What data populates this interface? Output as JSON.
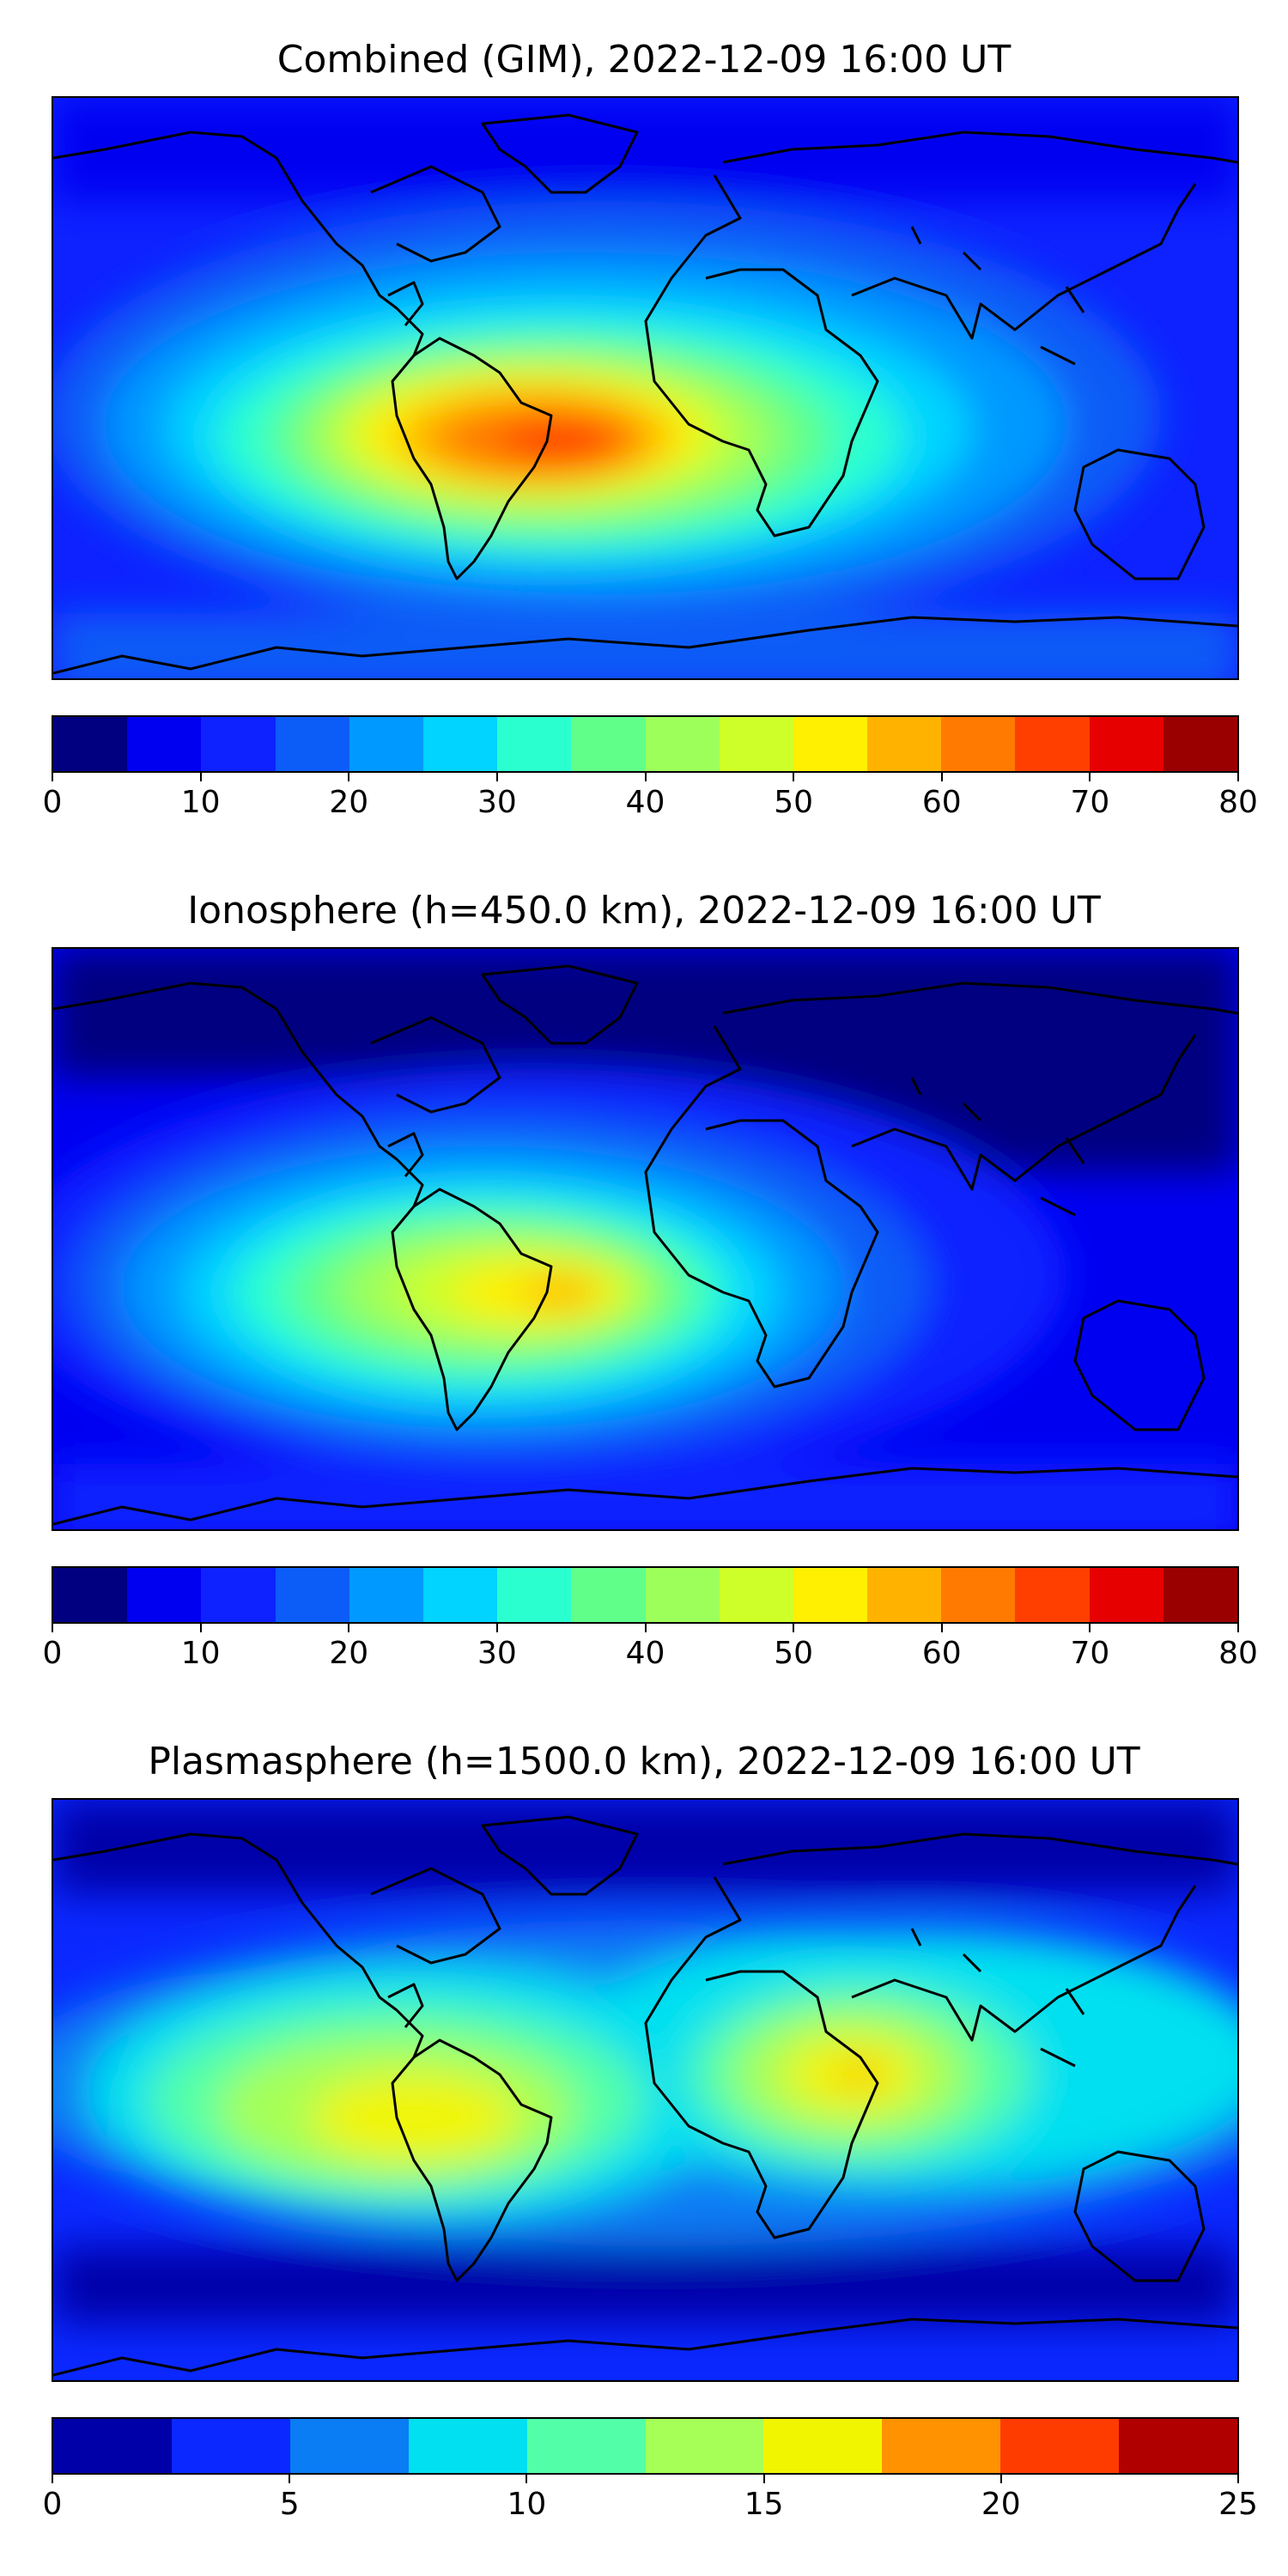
{
  "panels": [
    {
      "title": "Combined (GIM), 2022-12-09 16:00 UT",
      "colorbar": {
        "min": 0,
        "max": 80,
        "tick_labels": [
          "0",
          "10",
          "20",
          "30",
          "40",
          "50",
          "60",
          "70",
          "80"
        ],
        "colors": [
          "#000080",
          "#0000f1",
          "#0d22ff",
          "#0c5cf7",
          "#0099ff",
          "#00d4ff",
          "#2affd0",
          "#60ff8a",
          "#9dff5a",
          "#ceff29",
          "#ffef00",
          "#ffb300",
          "#ff7a00",
          "#ff3f00",
          "#e70000",
          "#9a0000"
        ]
      },
      "map_background": "#1530e8"
    },
    {
      "title": "Ionosphere  (h=450.0 km), 2022-12-09 16:00 UT",
      "colorbar": {
        "min": 0,
        "max": 80,
        "tick_labels": [
          "0",
          "10",
          "20",
          "30",
          "40",
          "50",
          "60",
          "70",
          "80"
        ],
        "colors": [
          "#000080",
          "#0000f1",
          "#0d22ff",
          "#0c5cf7",
          "#0099ff",
          "#00d4ff",
          "#2affd0",
          "#60ff8a",
          "#9dff5a",
          "#ceff29",
          "#ffef00",
          "#ffb300",
          "#ff7a00",
          "#ff3f00",
          "#e70000",
          "#9a0000"
        ]
      },
      "map_background": "#0d1fb8"
    },
    {
      "title": "Plasmasphere (h=1500.0 km), 2022-12-09 16:00 UT",
      "colorbar": {
        "min": 0,
        "max": 25,
        "tick_labels": [
          "0",
          "5",
          "10",
          "15",
          "20",
          "25"
        ],
        "colors": [
          "#0000a8",
          "#0a28ff",
          "#0a7cf4",
          "#00e0f0",
          "#52ffa8",
          "#a6ff56",
          "#f2f500",
          "#ff9200",
          "#ff3c00",
          "#b00000"
        ]
      },
      "map_background": "#0a20d0"
    }
  ]
}
